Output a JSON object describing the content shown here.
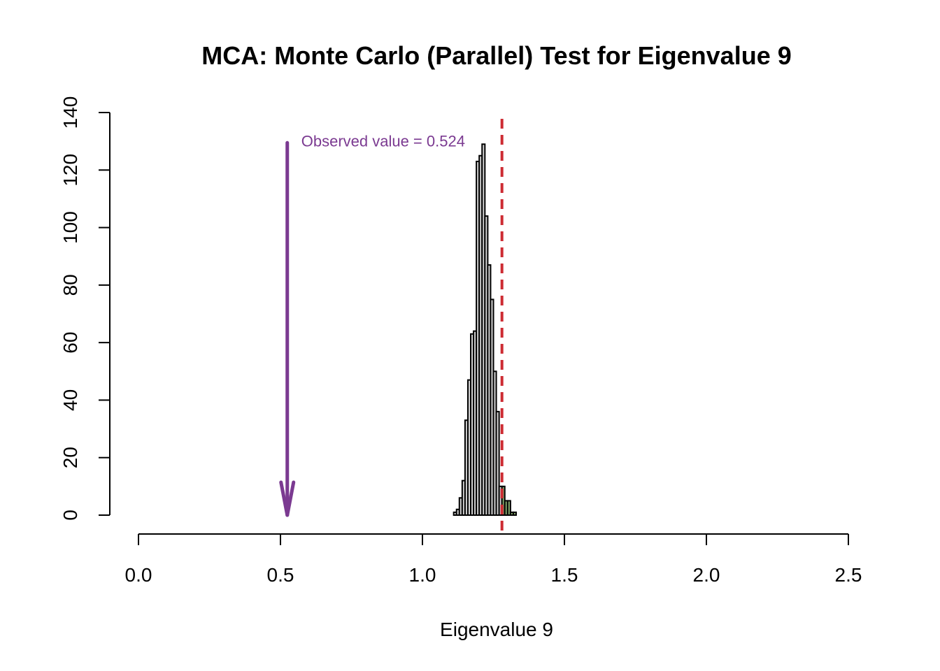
{
  "chart_data": {
    "type": "bar",
    "subtype": "histogram",
    "title": "MCA: Monte Carlo (Parallel) Test for Eigenvalue 9",
    "xlabel": "Eigenvalue 9",
    "ylabel": "",
    "xlim": [
      0.0,
      2.5
    ],
    "ylim": [
      0,
      140
    ],
    "x_ticks": [
      "0.0",
      "0.5",
      "1.0",
      "1.5",
      "2.0",
      "2.5"
    ],
    "y_ticks": [
      "0",
      "20",
      "40",
      "60",
      "80",
      "100",
      "120",
      "140"
    ],
    "grid": false,
    "bin_width": 0.01,
    "bins": [
      {
        "x0": 1.11,
        "x1": 1.12,
        "count": 1
      },
      {
        "x0": 1.12,
        "x1": 1.13,
        "count": 2
      },
      {
        "x0": 1.13,
        "x1": 1.14,
        "count": 6
      },
      {
        "x0": 1.14,
        "x1": 1.15,
        "count": 12
      },
      {
        "x0": 1.15,
        "x1": 1.16,
        "count": 33
      },
      {
        "x0": 1.16,
        "x1": 1.17,
        "count": 47
      },
      {
        "x0": 1.17,
        "x1": 1.18,
        "count": 63
      },
      {
        "x0": 1.18,
        "x1": 1.19,
        "count": 64
      },
      {
        "x0": 1.19,
        "x1": 1.2,
        "count": 123
      },
      {
        "x0": 1.2,
        "x1": 1.21,
        "count": 125
      },
      {
        "x0": 1.21,
        "x1": 1.22,
        "count": 129
      },
      {
        "x0": 1.22,
        "x1": 1.23,
        "count": 104
      },
      {
        "x0": 1.23,
        "x1": 1.24,
        "count": 87
      },
      {
        "x0": 1.24,
        "x1": 1.25,
        "count": 75
      },
      {
        "x0": 1.25,
        "x1": 1.26,
        "count": 50
      },
      {
        "x0": 1.26,
        "x1": 1.27,
        "count": 36
      },
      {
        "x0": 1.27,
        "x1": 1.28,
        "count": 10
      },
      {
        "x0": 1.28,
        "x1": 1.29,
        "count": 10
      },
      {
        "x0": 1.29,
        "x1": 1.3,
        "count": 5
      },
      {
        "x0": 1.3,
        "x1": 1.31,
        "count": 5
      },
      {
        "x0": 1.31,
        "x1": 1.32,
        "count": 1
      },
      {
        "x0": 1.32,
        "x1": 1.33,
        "count": 1
      }
    ],
    "critical_value": 1.28,
    "observed_value": 0.524,
    "annotation": "Observed value = 0.524",
    "arrow_from_y": 129,
    "arrow_to_y": 0,
    "colors": {
      "bar_fill": "#d3d3d3",
      "bar_fill_tail": "#86a86d",
      "bar_stroke": "#000000",
      "critical_line": "#cd2b32",
      "observed": "#7b3a91"
    }
  }
}
